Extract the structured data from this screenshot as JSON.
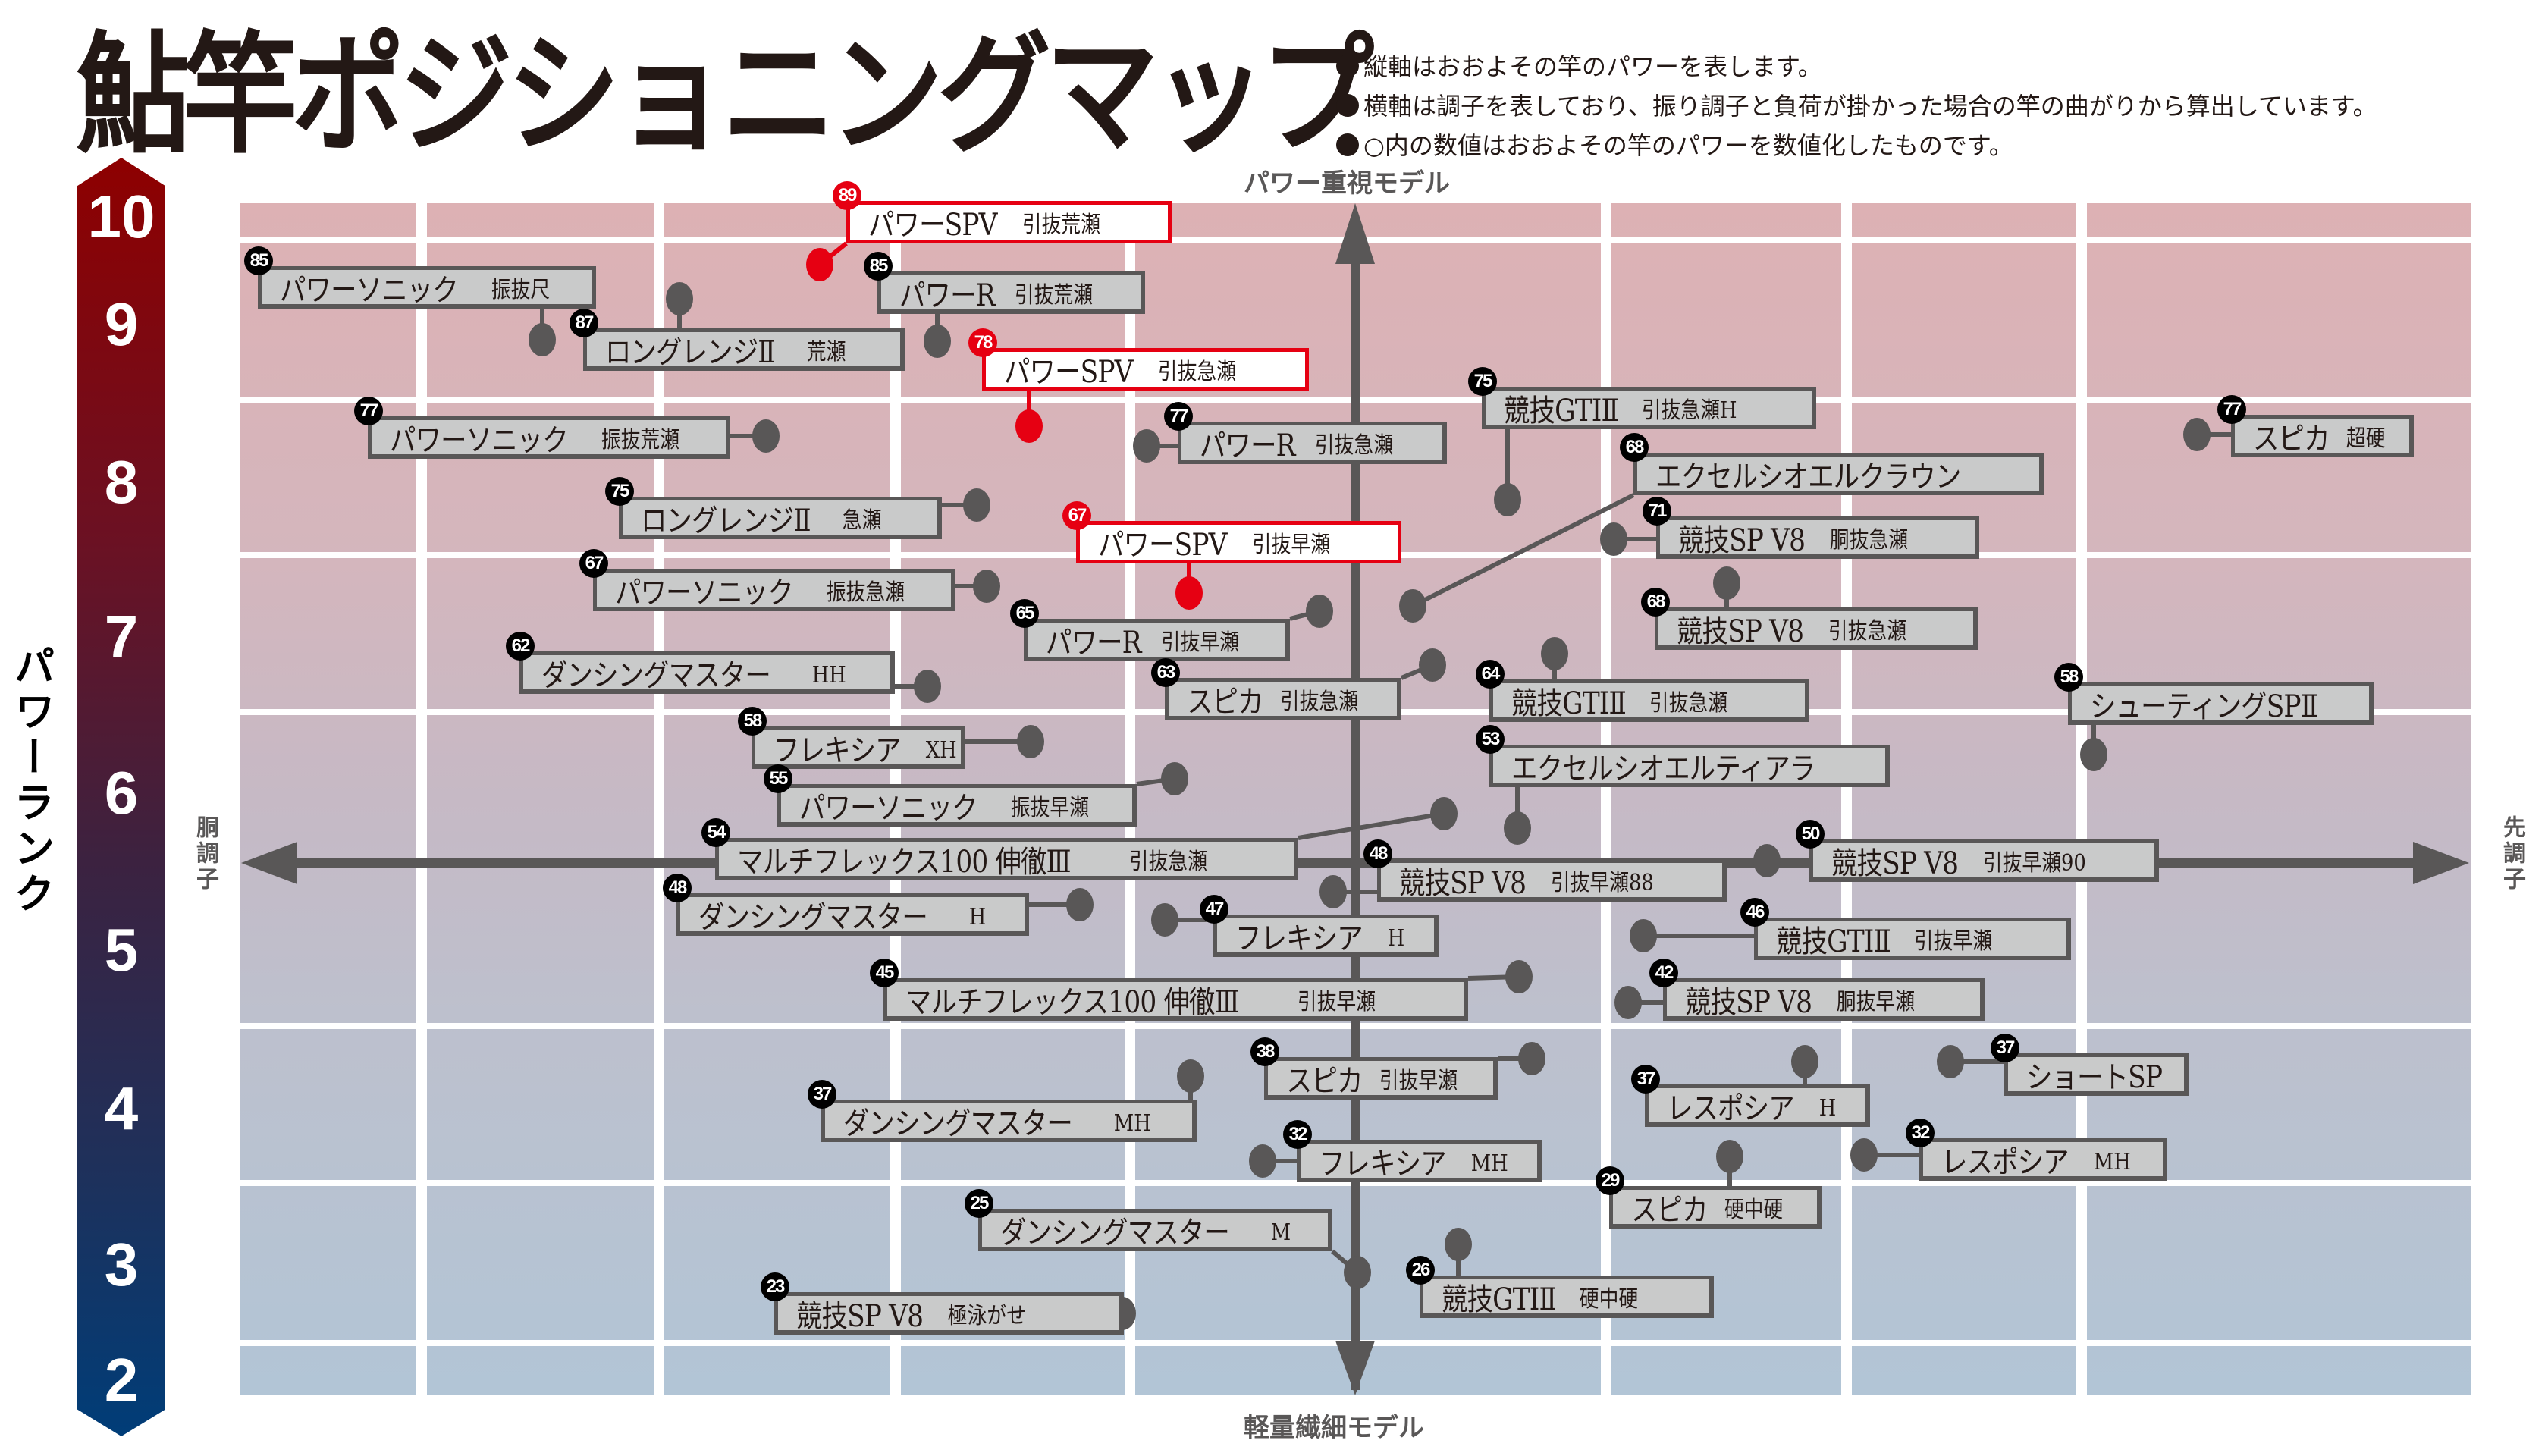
{
  "title": "鮎竿ポジショニングマップ",
  "notes": [
    "縦軸はおおよその竿のパワーを表します。",
    "横軸は調子を表しており、振り調子と負荷が掛かった場合の竿の曲がりから算出しています。",
    "○内の数値はおおよその竿のパワーを数値化したものです。"
  ],
  "axes": {
    "y_label": "パワーランク",
    "top_label": "パワー重視モデル",
    "bottom_label": "軽量繊細モデル",
    "left_label": "胴調子",
    "right_label": "先調子",
    "rank_ticks": [
      "10",
      "9",
      "8",
      "7",
      "6",
      "5",
      "4",
      "3",
      "2"
    ]
  },
  "colors": {
    "highlight": "#e60012",
    "box_fill": "#c9caca",
    "box_border": "#595757",
    "top_band": "#ddb1b4",
    "bottom_band": "#b2c5d6",
    "rank_top": "#8e0000",
    "rank_bottom": "#003d78"
  },
  "chart_data": {
    "type": "scatter",
    "title": "鮎竿ポジショニングマップ",
    "xlabel": "調子（胴調子 ← → 先調子）",
    "ylabel": "パワーランク",
    "ylim": [
      2,
      10
    ],
    "y_ticks": [
      10,
      9,
      8,
      7,
      6,
      5,
      4,
      3,
      2
    ],
    "grid": true,
    "points": [
      {
        "power": 89,
        "name": "パワーSPV",
        "sub": "引抜荒瀬",
        "highlight": true,
        "box": [
          1116,
          265,
          429
        ],
        "dot": [
          1081,
          349
        ]
      },
      {
        "power": 85,
        "name": "パワーソニック",
        "sub": "振抜尺",
        "highlight": false,
        "box": [
          340,
          351,
          446
        ],
        "dot": [
          715,
          448
        ]
      },
      {
        "power": 85,
        "name": "パワーR",
        "sub": "引抜荒瀬",
        "highlight": false,
        "box": [
          1157,
          358,
          353
        ],
        "dot": [
          1236,
          450
        ]
      },
      {
        "power": 87,
        "name": "ロングレンジⅡ",
        "sub": "荒瀬",
        "highlight": false,
        "box": [
          769,
          433,
          424
        ],
        "dot": [
          896,
          394
        ]
      },
      {
        "power": 78,
        "name": "パワーSPV",
        "sub": "引抜急瀬",
        "highlight": true,
        "box": [
          1295,
          459,
          431
        ],
        "dot": [
          1357,
          562
        ]
      },
      {
        "power": 75,
        "name": "競技GTⅠⅡ",
        "sub": "引抜急瀬H",
        "highlight": false,
        "box": [
          1954,
          510,
          441
        ],
        "dot": [
          1988,
          659
        ]
      },
      {
        "power": 77,
        "name": "スピカ",
        "sub": "超硬",
        "highlight": false,
        "box": [
          2942,
          547,
          241
        ],
        "dot": [
          2897,
          573
        ]
      },
      {
        "power": 77,
        "name": "パワーソニック",
        "sub": "振抜荒瀬",
        "highlight": false,
        "box": [
          485,
          549,
          478
        ],
        "dot": [
          1010,
          575
        ]
      },
      {
        "power": 77,
        "name": "パワーR",
        "sub": "引抜急瀬",
        "highlight": false,
        "box": [
          1553,
          556,
          355
        ],
        "dot": [
          1512,
          588
        ]
      },
      {
        "power": 68,
        "name": "エクセルシオエルクラウン",
        "sub": "",
        "highlight": false,
        "box": [
          2154,
          597,
          541
        ],
        "dot": [
          1863,
          799
        ]
      },
      {
        "power": 75,
        "name": "ロングレンジⅡ",
        "sub": "急瀬",
        "highlight": false,
        "box": [
          816,
          655,
          426
        ],
        "dot": [
          1288,
          666
        ]
      },
      {
        "power": 71,
        "name": "競技SP V8",
        "sub": "胴抜急瀬",
        "highlight": false,
        "box": [
          2184,
          681,
          426
        ],
        "dot": [
          2128,
          711
        ]
      },
      {
        "power": 67,
        "name": "パワーSPV",
        "sub": "引抜早瀬",
        "highlight": true,
        "box": [
          1419,
          687,
          429
        ],
        "dot": [
          1568,
          782
        ]
      },
      {
        "power": 67,
        "name": "パワーソニック",
        "sub": "振抜急瀬",
        "highlight": false,
        "box": [
          782,
          750,
          478
        ],
        "dot": [
          1301,
          773
        ]
      },
      {
        "power": 68,
        "name": "競技SP V8",
        "sub": "引抜急瀬",
        "highlight": false,
        "box": [
          2182,
          801,
          426
        ],
        "dot": [
          2277,
          769
        ]
      },
      {
        "power": 65,
        "name": "パワーR",
        "sub": "引抜早瀬",
        "highlight": false,
        "box": [
          1350,
          816,
          351
        ],
        "dot": [
          1740,
          806
        ]
      },
      {
        "power": 62,
        "name": "ダンシングマスター",
        "sub": "HH",
        "highlight": false,
        "box": [
          685,
          859,
          495
        ],
        "dot": [
          1223,
          905
        ]
      },
      {
        "power": 63,
        "name": "スピカ",
        "sub": "引抜急瀬",
        "highlight": false,
        "box": [
          1536,
          894,
          312
        ],
        "dot": [
          1889,
          877
        ]
      },
      {
        "power": 64,
        "name": "競技GTⅠⅡ",
        "sub": "引抜急瀬",
        "highlight": false,
        "box": [
          1964,
          896,
          422
        ],
        "dot": [
          2050,
          862
        ]
      },
      {
        "power": 58,
        "name": "シューティングSPⅡ",
        "sub": "",
        "highlight": false,
        "box": [
          2727,
          900,
          403
        ],
        "dot": [
          2761,
          995
        ]
      },
      {
        "power": 58,
        "name": "フレキシア",
        "sub": "XH",
        "highlight": false,
        "box": [
          991,
          958,
          282
        ],
        "dot": [
          1359,
          978
        ]
      },
      {
        "power": 53,
        "name": "エクセルシオエルティアラ",
        "sub": "",
        "highlight": false,
        "box": [
          1964,
          982,
          528
        ],
        "dot": [
          2001,
          1092
        ]
      },
      {
        "power": 55,
        "name": "パワーソニック",
        "sub": "振抜早瀬",
        "highlight": false,
        "box": [
          1025,
          1034,
          474
        ],
        "dot": [
          1549,
          1027
        ]
      },
      {
        "power": 54,
        "name": "マルチフレックス100 伸徹Ⅲ",
        "sub": "引抜急瀬",
        "highlight": false,
        "box": [
          943,
          1105,
          769
        ],
        "dot": [
          1904,
          1073
        ]
      },
      {
        "power": 48,
        "name": "競技SP V8",
        "sub": "引抜早瀬88",
        "highlight": false,
        "box": [
          1816,
          1133,
          461
        ],
        "dot": [
          1758,
          1176
        ]
      },
      {
        "power": 50,
        "name": "競技SP V8",
        "sub": "引抜早瀬90",
        "highlight": false,
        "box": [
          2386,
          1107,
          461
        ],
        "dot": [
          2330,
          1135
        ]
      },
      {
        "power": 48,
        "name": "ダンシングマスター",
        "sub": "H",
        "highlight": false,
        "box": [
          892,
          1178,
          465
        ],
        "dot": [
          1424,
          1193
        ]
      },
      {
        "power": 47,
        "name": "フレキシア",
        "sub": "H",
        "highlight": false,
        "box": [
          1600,
          1206,
          297
        ],
        "dot": [
          1536,
          1213
        ]
      },
      {
        "power": 46,
        "name": "競技GTⅠⅡ",
        "sub": "引抜早瀬",
        "highlight": false,
        "box": [
          2313,
          1210,
          418
        ],
        "dot": [
          2167,
          1234
        ]
      },
      {
        "power": 45,
        "name": "マルチフレックス100 伸徹Ⅲ",
        "sub": "引抜早瀬",
        "highlight": false,
        "box": [
          1165,
          1290,
          771
        ],
        "dot": [
          2003,
          1288
        ]
      },
      {
        "power": 42,
        "name": "競技SP V8",
        "sub": "胴抜早瀬",
        "highlight": false,
        "box": [
          2193,
          1290,
          424
        ],
        "dot": [
          2147,
          1322
        ]
      },
      {
        "power": 38,
        "name": "スピカ",
        "sub": "引抜早瀬",
        "highlight": false,
        "box": [
          1667,
          1394,
          308
        ],
        "dot": [
          2020,
          1396
        ]
      },
      {
        "power": 37,
        "name": "ショートSP",
        "sub": "",
        "highlight": false,
        "box": [
          2643,
          1389,
          243
        ],
        "dot": [
          2572,
          1400
        ]
      },
      {
        "power": 37,
        "name": "ダンシングマスター",
        "sub": "MH",
        "highlight": false,
        "box": [
          1083,
          1450,
          495
        ],
        "dot": [
          1570,
          1419
        ]
      },
      {
        "power": 37,
        "name": "レスポシア",
        "sub": "H",
        "highlight": false,
        "box": [
          2169,
          1430,
          297
        ],
        "dot": [
          2380,
          1400
        ]
      },
      {
        "power": 32,
        "name": "フレキシア",
        "sub": "MH",
        "highlight": false,
        "box": [
          1710,
          1503,
          323
        ],
        "dot": [
          1665,
          1531
        ]
      },
      {
        "power": 32,
        "name": "レスポシア",
        "sub": "MH",
        "highlight": false,
        "box": [
          2531,
          1501,
          327
        ],
        "dot": [
          2458,
          1523
        ]
      },
      {
        "power": 29,
        "name": "スピカ",
        "sub": "硬中硬",
        "highlight": false,
        "box": [
          2122,
          1564,
          280
        ],
        "dot": [
          2281,
          1525
        ]
      },
      {
        "power": 25,
        "name": "ダンシングマスター",
        "sub": "M",
        "highlight": false,
        "box": [
          1290,
          1594,
          467
        ],
        "dot": [
          1790,
          1678
        ]
      },
      {
        "power": 26,
        "name": "競技GTⅠⅡ",
        "sub": "硬中硬",
        "highlight": false,
        "box": [
          1872,
          1682,
          388
        ],
        "dot": [
          1923,
          1641
        ]
      },
      {
        "power": 23,
        "name": "競技SP V8",
        "sub": "極泳がせ",
        "highlight": false,
        "box": [
          1021,
          1704,
          461
        ],
        "dot": [
          1480,
          1732
        ]
      }
    ]
  }
}
